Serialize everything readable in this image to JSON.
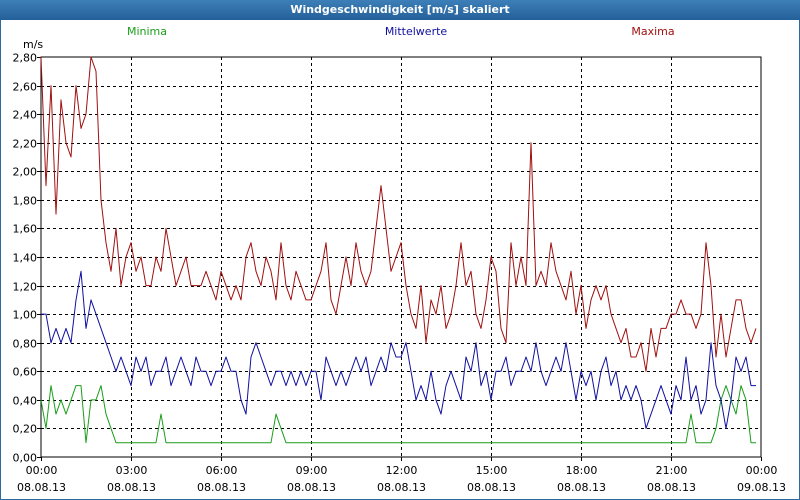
{
  "window": {
    "title": "Windgeschwindigkeit [m/s] skaliert"
  },
  "colors": {
    "titlebar": "#2c6aa0",
    "minima": "#1a9e1a",
    "mittelwerte": "#1010a0",
    "maxima": "#a01010",
    "grid": "#000000"
  },
  "chart_data": {
    "type": "line",
    "title": "Windgeschwindigkeit [m/s] skaliert",
    "ylabel": "m/s",
    "xlabel": "",
    "ylim": [
      0,
      2.8
    ],
    "xlim_hours": [
      0,
      24
    ],
    "grid": true,
    "legend_position": "top",
    "y_ticks": [
      "0,00",
      "0,20",
      "0,40",
      "0,60",
      "0,80",
      "1,00",
      "1,20",
      "1,40",
      "1,60",
      "1,80",
      "2,00",
      "2,20",
      "2,40",
      "2,60",
      "2,80"
    ],
    "x_ticks": [
      {
        "time": "00:00",
        "date": "08.08.13"
      },
      {
        "time": "03:00",
        "date": "08.08.13"
      },
      {
        "time": "06:00",
        "date": "08.08.13"
      },
      {
        "time": "09:00",
        "date": "08.08.13"
      },
      {
        "time": "12:00",
        "date": "08.08.13"
      },
      {
        "time": "15:00",
        "date": "08.08.13"
      },
      {
        "time": "18:00",
        "date": "08.08.13"
      },
      {
        "time": "21:00",
        "date": "08.08.13"
      },
      {
        "time": "00:00",
        "date": "09.08.13"
      }
    ],
    "x_hours": [
      0.0,
      0.167,
      0.333,
      0.5,
      0.667,
      0.833,
      1.0,
      1.167,
      1.333,
      1.5,
      1.667,
      1.833,
      2.0,
      2.167,
      2.333,
      2.5,
      2.667,
      2.833,
      3.0,
      3.167,
      3.333,
      3.5,
      3.667,
      3.833,
      4.0,
      4.167,
      4.333,
      4.5,
      4.667,
      4.833,
      5.0,
      5.167,
      5.333,
      5.5,
      5.667,
      5.833,
      6.0,
      6.167,
      6.333,
      6.5,
      6.667,
      6.833,
      7.0,
      7.167,
      7.333,
      7.5,
      7.667,
      7.833,
      8.0,
      8.167,
      8.333,
      8.5,
      8.667,
      8.833,
      9.0,
      9.167,
      9.333,
      9.5,
      9.667,
      9.833,
      10.0,
      10.167,
      10.333,
      10.5,
      10.667,
      10.833,
      11.0,
      11.167,
      11.333,
      11.5,
      11.667,
      11.833,
      12.0,
      12.167,
      12.333,
      12.5,
      12.667,
      12.833,
      13.0,
      13.167,
      13.333,
      13.5,
      13.667,
      13.833,
      14.0,
      14.167,
      14.333,
      14.5,
      14.667,
      14.833,
      15.0,
      15.167,
      15.333,
      15.5,
      15.667,
      15.833,
      16.0,
      16.167,
      16.333,
      16.5,
      16.667,
      16.833,
      17.0,
      17.167,
      17.333,
      17.5,
      17.667,
      17.833,
      18.0,
      18.167,
      18.333,
      18.5,
      18.667,
      18.833,
      19.0,
      19.167,
      19.333,
      19.5,
      19.667,
      19.833,
      20.0,
      20.167,
      20.333,
      20.5,
      20.667,
      20.833,
      21.0,
      21.167,
      21.333,
      21.5,
      21.667,
      21.833,
      22.0,
      22.167,
      22.333,
      22.5,
      22.667,
      22.833,
      23.0,
      23.167,
      23.333,
      23.5,
      23.667,
      23.833
    ],
    "series": [
      {
        "name": "Minima",
        "color": "#1a9e1a",
        "values": [
          0.4,
          0.2,
          0.5,
          0.3,
          0.4,
          0.3,
          0.4,
          0.5,
          0.5,
          0.1,
          0.4,
          0.4,
          0.5,
          0.3,
          0.2,
          0.1,
          0.1,
          0.1,
          0.1,
          0.1,
          0.1,
          0.1,
          0.1,
          0.1,
          0.3,
          0.1,
          0.1,
          0.1,
          0.1,
          0.1,
          0.1,
          0.1,
          0.1,
          0.1,
          0.1,
          0.1,
          0.1,
          0.1,
          0.1,
          0.1,
          0.1,
          0.1,
          0.1,
          0.1,
          0.1,
          0.1,
          0.1,
          0.3,
          0.2,
          0.1,
          0.1,
          0.1,
          0.1,
          0.1,
          0.1,
          0.1,
          0.1,
          0.1,
          0.1,
          0.1,
          0.1,
          0.1,
          0.1,
          0.1,
          0.1,
          0.1,
          0.1,
          0.1,
          0.1,
          0.1,
          0.1,
          0.1,
          0.1,
          0.1,
          0.1,
          0.1,
          0.1,
          0.1,
          0.1,
          0.1,
          0.1,
          0.1,
          0.1,
          0.1,
          0.1,
          0.1,
          0.1,
          0.1,
          0.1,
          0.1,
          0.1,
          0.1,
          0.1,
          0.1,
          0.1,
          0.1,
          0.1,
          0.1,
          0.1,
          0.1,
          0.1,
          0.1,
          0.1,
          0.1,
          0.1,
          0.1,
          0.1,
          0.1,
          0.1,
          0.1,
          0.1,
          0.1,
          0.1,
          0.1,
          0.1,
          0.1,
          0.1,
          0.1,
          0.1,
          0.1,
          0.1,
          0.1,
          0.1,
          0.1,
          0.1,
          0.1,
          0.1,
          0.1,
          0.1,
          0.1,
          0.3,
          0.1,
          0.1,
          0.1,
          0.1,
          0.2,
          0.4,
          0.5,
          0.4,
          0.3,
          0.5,
          0.4,
          0.1,
          0.1
        ]
      },
      {
        "name": "Mittelwerte",
        "color": "#1010a0",
        "values": [
          1.0,
          1.0,
          0.8,
          0.9,
          0.8,
          0.9,
          0.8,
          1.1,
          1.3,
          0.9,
          1.1,
          1.0,
          0.9,
          0.8,
          0.7,
          0.6,
          0.7,
          0.6,
          0.5,
          0.7,
          0.6,
          0.7,
          0.5,
          0.6,
          0.6,
          0.7,
          0.5,
          0.6,
          0.7,
          0.6,
          0.5,
          0.7,
          0.6,
          0.6,
          0.5,
          0.6,
          0.6,
          0.7,
          0.6,
          0.6,
          0.4,
          0.3,
          0.7,
          0.8,
          0.7,
          0.6,
          0.5,
          0.6,
          0.6,
          0.5,
          0.6,
          0.5,
          0.6,
          0.5,
          0.6,
          0.6,
          0.4,
          0.7,
          0.6,
          0.5,
          0.6,
          0.5,
          0.6,
          0.7,
          0.6,
          0.7,
          0.5,
          0.6,
          0.7,
          0.6,
          0.8,
          0.7,
          0.7,
          0.8,
          0.6,
          0.4,
          0.5,
          0.4,
          0.6,
          0.4,
          0.3,
          0.5,
          0.6,
          0.5,
          0.4,
          0.7,
          0.6,
          0.8,
          0.5,
          0.6,
          0.4,
          0.6,
          0.6,
          0.7,
          0.5,
          0.6,
          0.6,
          0.7,
          0.6,
          0.8,
          0.6,
          0.5,
          0.6,
          0.7,
          0.6,
          0.8,
          0.6,
          0.4,
          0.6,
          0.5,
          0.6,
          0.4,
          0.6,
          0.7,
          0.5,
          0.6,
          0.4,
          0.5,
          0.4,
          0.5,
          0.4,
          0.2,
          0.3,
          0.4,
          0.5,
          0.4,
          0.3,
          0.5,
          0.4,
          0.7,
          0.4,
          0.5,
          0.3,
          0.4,
          0.8,
          0.5,
          0.4,
          0.2,
          0.4,
          0.7,
          0.6,
          0.7,
          0.5,
          0.5
        ]
      },
      {
        "name": "Maxima",
        "color": "#a01010",
        "values": [
          2.8,
          1.9,
          2.6,
          1.7,
          2.5,
          2.2,
          2.1,
          2.6,
          2.3,
          2.4,
          2.8,
          2.7,
          1.8,
          1.5,
          1.3,
          1.6,
          1.2,
          1.4,
          1.5,
          1.3,
          1.4,
          1.2,
          1.2,
          1.4,
          1.3,
          1.6,
          1.4,
          1.2,
          1.3,
          1.4,
          1.2,
          1.2,
          1.2,
          1.3,
          1.2,
          1.1,
          1.3,
          1.2,
          1.1,
          1.2,
          1.1,
          1.4,
          1.5,
          1.3,
          1.2,
          1.4,
          1.3,
          1.1,
          1.5,
          1.2,
          1.1,
          1.3,
          1.2,
          1.1,
          1.1,
          1.2,
          1.3,
          1.5,
          1.1,
          1.0,
          1.2,
          1.4,
          1.2,
          1.5,
          1.3,
          1.2,
          1.3,
          1.6,
          1.9,
          1.6,
          1.3,
          1.4,
          1.5,
          1.2,
          1.0,
          0.9,
          1.2,
          0.8,
          1.1,
          1.0,
          1.2,
          0.9,
          1.0,
          1.2,
          1.5,
          1.2,
          1.3,
          1.0,
          0.9,
          1.1,
          1.4,
          1.3,
          0.9,
          0.8,
          1.5,
          1.2,
          1.4,
          1.2,
          2.2,
          1.2,
          1.3,
          1.2,
          1.5,
          1.3,
          1.2,
          1.1,
          1.3,
          1.0,
          1.2,
          0.9,
          1.1,
          1.2,
          1.1,
          1.2,
          1.0,
          0.9,
          0.8,
          0.9,
          0.7,
          0.7,
          0.8,
          0.6,
          0.9,
          0.7,
          0.9,
          0.9,
          1.0,
          1.0,
          1.1,
          1.0,
          1.0,
          0.9,
          1.0,
          1.5,
          1.2,
          0.7,
          1.0,
          0.7,
          0.9,
          1.1,
          1.1,
          0.9,
          0.8,
          0.9
        ]
      }
    ]
  }
}
